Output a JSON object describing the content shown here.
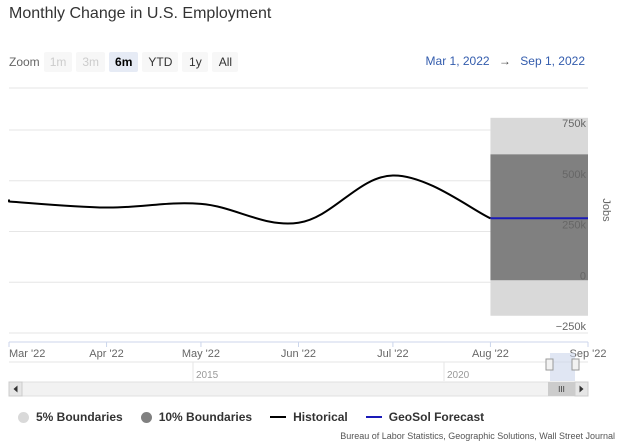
{
  "title": "Monthly Change in U.S. Employment",
  "zoom": {
    "label": "Zoom",
    "buttons": [
      {
        "label": "1m",
        "state": "disabled"
      },
      {
        "label": "3m",
        "state": "disabled"
      },
      {
        "label": "6m",
        "state": "active"
      },
      {
        "label": "YTD",
        "state": "normal"
      },
      {
        "label": "1y",
        "state": "normal"
      },
      {
        "label": "All",
        "state": "normal"
      }
    ]
  },
  "date_range": {
    "from": "Mar 1, 2022",
    "arrow": "→",
    "to": "Sep 1, 2022"
  },
  "navigator": {
    "year_labels": [
      "2015",
      "2020"
    ],
    "grip": "III"
  },
  "legend": [
    {
      "label": "5% Boundaries",
      "marker": "dot",
      "color": "#d9d9d9"
    },
    {
      "label": "10% Boundaries",
      "marker": "dot",
      "color": "#808080"
    },
    {
      "label": "Historical",
      "marker": "line",
      "color": "#000000"
    },
    {
      "label": "GeoSol Forecast",
      "marker": "line",
      "color": "#1a1ab8"
    }
  ],
  "source": "Bureau of Labor Statistics, Geographic Solutions, Wall Street Journal",
  "chart_data": {
    "type": "line",
    "title": "Monthly Change in U.S. Employment",
    "ylabel": "Jobs",
    "ylim": [
      -250000,
      750000
    ],
    "yticks": [
      -250000,
      0,
      250000,
      500000,
      750000
    ],
    "ytick_labels": [
      "−250k",
      "0",
      "250k",
      "500k",
      "750k"
    ],
    "x_tick_labels": [
      "Mar '22",
      "Apr '22",
      "May '22",
      "Jun '22",
      "Jul '22",
      "Aug '22",
      "Sep '22"
    ],
    "x_tick_dates": [
      "2022-03-01",
      "2022-04-01",
      "2022-05-01",
      "2022-06-01",
      "2022-07-01",
      "2022-08-01",
      "2022-09-01"
    ],
    "grid": true,
    "series": [
      {
        "name": "Historical",
        "color": "#000000",
        "x": [
          "2022-03-01",
          "2022-04-01",
          "2022-05-01",
          "2022-06-01",
          "2022-07-01",
          "2022-08-01"
        ],
        "y": [
          398000,
          368000,
          386000,
          293000,
          526000,
          315000
        ]
      },
      {
        "name": "GeoSol Forecast",
        "color": "#1a1ab8",
        "x": [
          "2022-08-01",
          "2022-09-01"
        ],
        "y": [
          315000,
          315000
        ]
      }
    ],
    "bands": [
      {
        "name": "5% Boundaries",
        "color": "#d9d9d9",
        "x": [
          "2022-08-01",
          "2022-09-01"
        ],
        "low": -165000,
        "high": 810000
      },
      {
        "name": "10% Boundaries",
        "color": "#808080",
        "x": [
          "2022-08-01",
          "2022-09-01"
        ],
        "low": 10000,
        "high": 630000
      }
    ],
    "legend_position": "bottom"
  }
}
